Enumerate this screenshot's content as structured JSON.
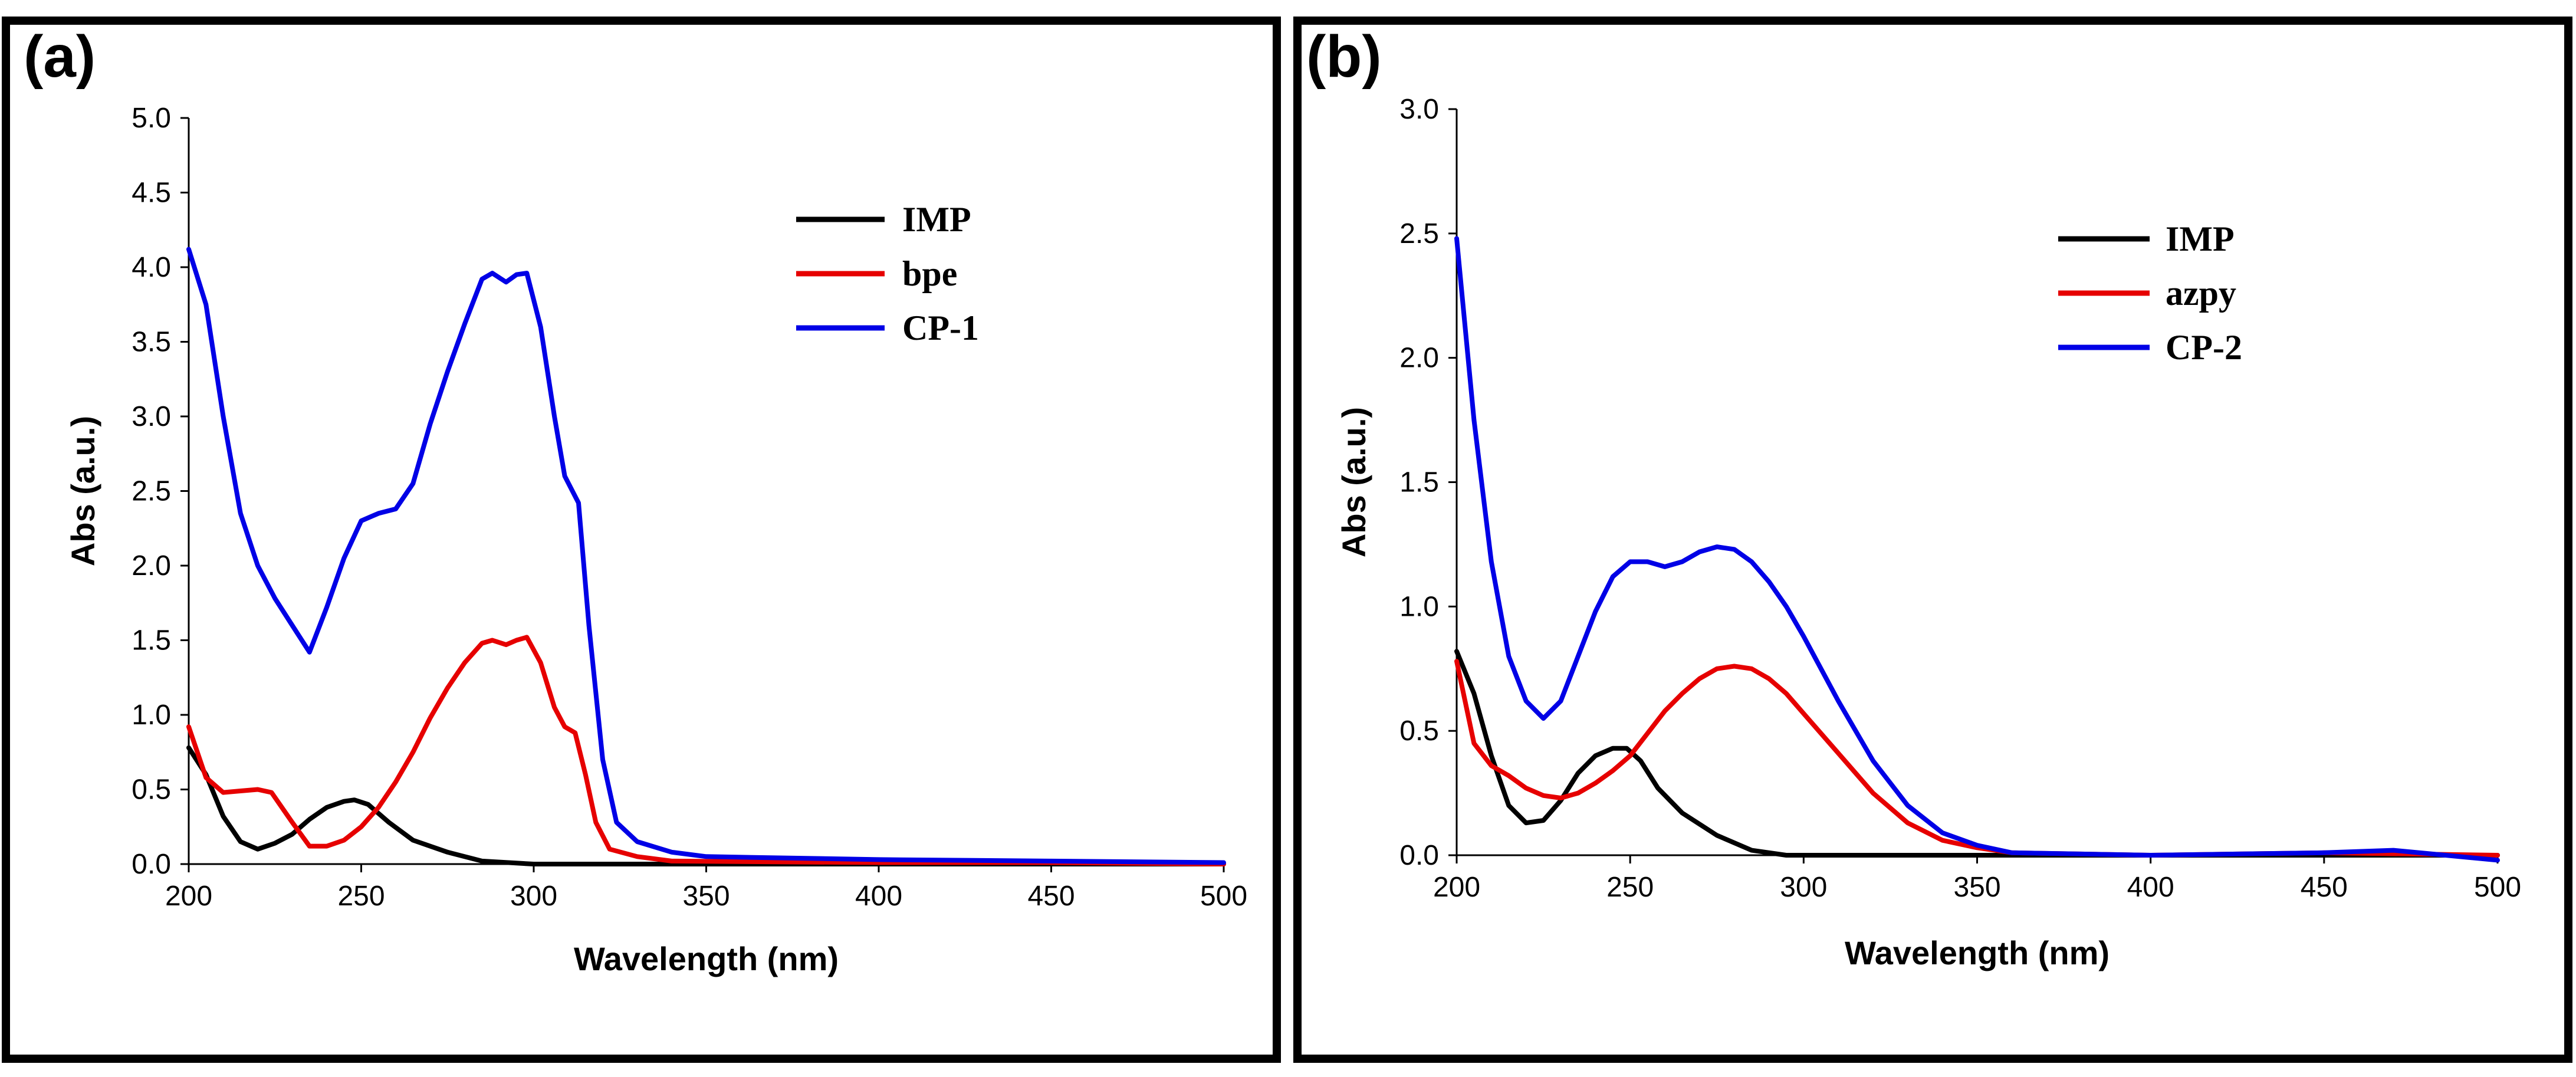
{
  "chart_data": [
    {
      "type": "line",
      "panel_label": "(a)",
      "title": "",
      "xlabel": "Wavelength (nm)",
      "ylabel": "Abs (a.u.)",
      "xlim": [
        200,
        500
      ],
      "ylim": [
        0,
        5
      ],
      "xticks": [
        "200",
        "250",
        "300",
        "350",
        "400",
        "450",
        "500"
      ],
      "yticks": [
        "0.0",
        "0.5",
        "1.0",
        "1.5",
        "2.0",
        "2.5",
        "3.0",
        "3.5",
        "4.0",
        "4.5",
        "5.0"
      ],
      "legend_position": "top-right",
      "series": [
        {
          "name": "IMP",
          "color": "#000000",
          "points": [
            [
              200,
              0.78
            ],
            [
              205,
              0.6
            ],
            [
              210,
              0.32
            ],
            [
              215,
              0.15
            ],
            [
              220,
              0.1
            ],
            [
              225,
              0.14
            ],
            [
              230,
              0.2
            ],
            [
              235,
              0.3
            ],
            [
              240,
              0.38
            ],
            [
              245,
              0.42
            ],
            [
              248,
              0.43
            ],
            [
              252,
              0.4
            ],
            [
              258,
              0.28
            ],
            [
              265,
              0.16
            ],
            [
              275,
              0.08
            ],
            [
              285,
              0.02
            ],
            [
              300,
              0.0
            ],
            [
              350,
              0.0
            ],
            [
              400,
              0.0
            ],
            [
              450,
              0.0
            ],
            [
              500,
              0.0
            ]
          ]
        },
        {
          "name": "bpe",
          "color": "#e60000",
          "points": [
            [
              200,
              0.92
            ],
            [
              205,
              0.58
            ],
            [
              210,
              0.48
            ],
            [
              215,
              0.49
            ],
            [
              220,
              0.5
            ],
            [
              224,
              0.48
            ],
            [
              230,
              0.28
            ],
            [
              235,
              0.12
            ],
            [
              240,
              0.12
            ],
            [
              245,
              0.16
            ],
            [
              250,
              0.25
            ],
            [
              255,
              0.38
            ],
            [
              260,
              0.55
            ],
            [
              265,
              0.75
            ],
            [
              270,
              0.98
            ],
            [
              275,
              1.18
            ],
            [
              280,
              1.35
            ],
            [
              285,
              1.48
            ],
            [
              288,
              1.5
            ],
            [
              292,
              1.47
            ],
            [
              295,
              1.5
            ],
            [
              298,
              1.52
            ],
            [
              302,
              1.35
            ],
            [
              306,
              1.05
            ],
            [
              309,
              0.92
            ],
            [
              312,
              0.88
            ],
            [
              315,
              0.6
            ],
            [
              318,
              0.28
            ],
            [
              322,
              0.1
            ],
            [
              330,
              0.05
            ],
            [
              340,
              0.02
            ],
            [
              400,
              0.01
            ],
            [
              450,
              0.01
            ],
            [
              500,
              0.0
            ]
          ]
        },
        {
          "name": "CP-1",
          "color": "#0000e6",
          "points": [
            [
              200,
              4.12
            ],
            [
              205,
              3.75
            ],
            [
              210,
              3.0
            ],
            [
              215,
              2.35
            ],
            [
              220,
              2.0
            ],
            [
              225,
              1.78
            ],
            [
              230,
              1.6
            ],
            [
              235,
              1.42
            ],
            [
              240,
              1.72
            ],
            [
              245,
              2.05
            ],
            [
              250,
              2.3
            ],
            [
              255,
              2.35
            ],
            [
              260,
              2.38
            ],
            [
              265,
              2.55
            ],
            [
              270,
              2.95
            ],
            [
              275,
              3.3
            ],
            [
              280,
              3.62
            ],
            [
              285,
              3.92
            ],
            [
              288,
              3.96
            ],
            [
              292,
              3.9
            ],
            [
              295,
              3.95
            ],
            [
              298,
              3.96
            ],
            [
              302,
              3.6
            ],
            [
              306,
              3.0
            ],
            [
              309,
              2.6
            ],
            [
              313,
              2.42
            ],
            [
              316,
              1.6
            ],
            [
              320,
              0.7
            ],
            [
              324,
              0.28
            ],
            [
              330,
              0.15
            ],
            [
              340,
              0.08
            ],
            [
              350,
              0.05
            ],
            [
              400,
              0.03
            ],
            [
              450,
              0.02
            ],
            [
              500,
              0.01
            ]
          ]
        }
      ]
    },
    {
      "type": "line",
      "panel_label": "(b)",
      "title": "",
      "xlabel": "Wavelength (nm)",
      "ylabel": "Abs (a.u.)",
      "xlim": [
        200,
        500
      ],
      "ylim": [
        0,
        3
      ],
      "xticks": [
        "200",
        "250",
        "300",
        "350",
        "400",
        "450",
        "500"
      ],
      "yticks": [
        "0.0",
        "0.5",
        "1.0",
        "1.5",
        "2.0",
        "2.5",
        "3.0"
      ],
      "legend_position": "top-right",
      "series": [
        {
          "name": "IMP",
          "color": "#000000",
          "points": [
            [
              200,
              0.82
            ],
            [
              205,
              0.65
            ],
            [
              210,
              0.4
            ],
            [
              215,
              0.2
            ],
            [
              220,
              0.13
            ],
            [
              225,
              0.14
            ],
            [
              230,
              0.22
            ],
            [
              235,
              0.33
            ],
            [
              240,
              0.4
            ],
            [
              245,
              0.43
            ],
            [
              249,
              0.43
            ],
            [
              253,
              0.38
            ],
            [
              258,
              0.27
            ],
            [
              265,
              0.17
            ],
            [
              275,
              0.08
            ],
            [
              285,
              0.02
            ],
            [
              295,
              0.0
            ],
            [
              350,
              0.0
            ],
            [
              400,
              0.0
            ],
            [
              450,
              0.0
            ],
            [
              500,
              0.0
            ]
          ]
        },
        {
          "name": "azpy",
          "color": "#e60000",
          "points": [
            [
              200,
              0.78
            ],
            [
              205,
              0.45
            ],
            [
              210,
              0.36
            ],
            [
              215,
              0.32
            ],
            [
              220,
              0.27
            ],
            [
              225,
              0.24
            ],
            [
              230,
              0.23
            ],
            [
              235,
              0.25
            ],
            [
              240,
              0.29
            ],
            [
              245,
              0.34
            ],
            [
              250,
              0.4
            ],
            [
              255,
              0.49
            ],
            [
              260,
              0.58
            ],
            [
              265,
              0.65
            ],
            [
              270,
              0.71
            ],
            [
              275,
              0.75
            ],
            [
              280,
              0.76
            ],
            [
              285,
              0.75
            ],
            [
              290,
              0.71
            ],
            [
              295,
              0.65
            ],
            [
              300,
              0.57
            ],
            [
              310,
              0.41
            ],
            [
              320,
              0.25
            ],
            [
              330,
              0.13
            ],
            [
              340,
              0.06
            ],
            [
              350,
              0.03
            ],
            [
              360,
              0.01
            ],
            [
              400,
              0.0
            ],
            [
              450,
              0.01
            ],
            [
              500,
              0.0
            ]
          ]
        },
        {
          "name": "CP-2",
          "color": "#0000e6",
          "points": [
            [
              200,
              2.48
            ],
            [
              205,
              1.75
            ],
            [
              210,
              1.18
            ],
            [
              215,
              0.8
            ],
            [
              220,
              0.62
            ],
            [
              225,
              0.55
            ],
            [
              230,
              0.62
            ],
            [
              235,
              0.8
            ],
            [
              240,
              0.98
            ],
            [
              245,
              1.12
            ],
            [
              250,
              1.18
            ],
            [
              255,
              1.18
            ],
            [
              260,
              1.16
            ],
            [
              265,
              1.18
            ],
            [
              270,
              1.22
            ],
            [
              275,
              1.24
            ],
            [
              280,
              1.23
            ],
            [
              285,
              1.18
            ],
            [
              290,
              1.1
            ],
            [
              295,
              1.0
            ],
            [
              300,
              0.88
            ],
            [
              310,
              0.62
            ],
            [
              320,
              0.38
            ],
            [
              330,
              0.2
            ],
            [
              340,
              0.09
            ],
            [
              350,
              0.04
            ],
            [
              360,
              0.01
            ],
            [
              400,
              0.0
            ],
            [
              450,
              0.01
            ],
            [
              470,
              0.02
            ],
            [
              500,
              -0.02
            ]
          ]
        }
      ]
    }
  ]
}
